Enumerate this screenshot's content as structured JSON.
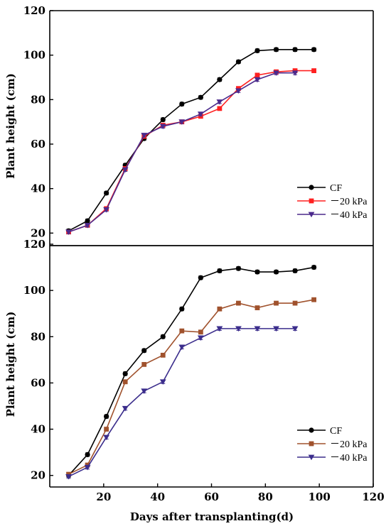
{
  "chart_data": [
    {
      "type": "line",
      "ylabel": "Plant height (cm)",
      "xlabel": "",
      "ylim": [
        15,
        120
      ],
      "yticks": [
        20,
        40,
        60,
        80,
        100,
        120
      ],
      "xlim": [
        0,
        120
      ],
      "legend": "bottom-right",
      "series": [
        {
          "name": "CF",
          "color": "#000000",
          "marker": "circle",
          "x": [
            7,
            14,
            21,
            28,
            35,
            42,
            49,
            56,
            63,
            70,
            77,
            84,
            91,
            98
          ],
          "values": [
            21,
            25.5,
            38,
            50.5,
            62.5,
            71,
            78,
            81,
            89,
            97,
            102,
            102.5,
            102.5,
            102.5
          ]
        },
        {
          "name": "－20 kPa",
          "color": "#ff2020",
          "marker": "square",
          "x": [
            7,
            14,
            21,
            28,
            35,
            42,
            49,
            56,
            63,
            70,
            77,
            84,
            91,
            98
          ],
          "values": [
            20.5,
            23.5,
            31,
            49,
            63.5,
            68.5,
            70,
            72.5,
            76,
            85,
            91,
            92.5,
            93,
            93
          ]
        },
        {
          "name": "－40 kPa",
          "color": "#4b2a8c",
          "marker": "triangle-down",
          "x": [
            7,
            14,
            21,
            28,
            35,
            42,
            49,
            56,
            63,
            70,
            77,
            84,
            91
          ],
          "values": [
            20.5,
            23.5,
            30.5,
            48.5,
            64,
            68,
            70,
            73.5,
            79,
            84,
            89,
            92,
            92
          ]
        }
      ]
    },
    {
      "type": "line",
      "ylabel": "Plant height (cm)",
      "xlabel": "Days after transplanting(d)",
      "ylim": [
        15,
        120
      ],
      "yticks": [
        20,
        40,
        60,
        80,
        100,
        120
      ],
      "xlim": [
        0,
        120
      ],
      "xticks": [
        20,
        40,
        60,
        80,
        100,
        120
      ],
      "legend": "bottom-right",
      "series": [
        {
          "name": "CF",
          "color": "#000000",
          "marker": "circle",
          "x": [
            7,
            14,
            21,
            28,
            35,
            42,
            49,
            56,
            63,
            70,
            77,
            84,
            91,
            98
          ],
          "values": [
            20,
            29,
            45.5,
            64,
            74,
            80,
            92,
            105.5,
            108.5,
            109.5,
            108,
            108,
            108.5,
            110
          ]
        },
        {
          "name": "－20 kPa",
          "color": "#a0522d",
          "marker": "square",
          "x": [
            7,
            14,
            21,
            28,
            35,
            42,
            49,
            56,
            63,
            70,
            77,
            84,
            91,
            98
          ],
          "values": [
            20.5,
            24.5,
            40,
            60.5,
            68,
            72,
            82.5,
            82,
            92,
            94.5,
            92.5,
            94.5,
            94.5,
            96
          ]
        },
        {
          "name": "－40 kPa",
          "color": "#3b2d8c",
          "marker": "triangle-down",
          "x": [
            7,
            14,
            21,
            28,
            35,
            42,
            49,
            56,
            63,
            70,
            77,
            84,
            91
          ],
          "values": [
            19.5,
            23.5,
            36.5,
            49,
            56.5,
            60.5,
            75.5,
            79.5,
            83.5,
            83.5,
            83.5,
            83.5,
            83.5
          ]
        }
      ]
    }
  ]
}
